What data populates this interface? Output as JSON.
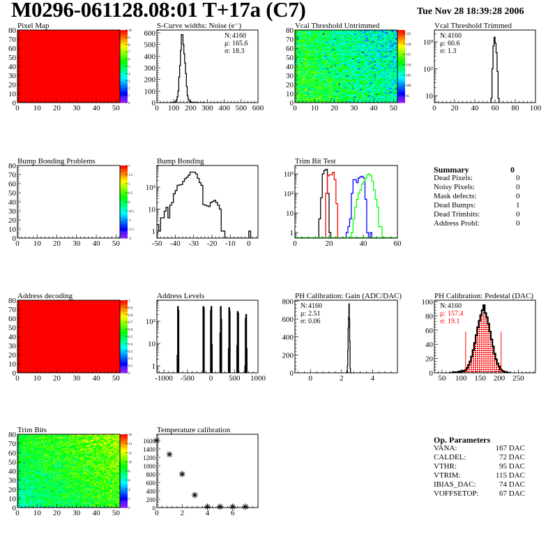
{
  "header": {
    "title": "M0296-061128.08:01 T+17a (C7)",
    "date": "Tue Nov 28 18:39:28 2006"
  },
  "summary": {
    "title": "Summary",
    "total": "0",
    "rows": [
      {
        "label": "Dead Pixels:",
        "value": "0"
      },
      {
        "label": "Noisy Pixels:",
        "value": "0"
      },
      {
        "label": "Mask defects:",
        "value": "0"
      },
      {
        "label": "Dead Bumps:",
        "value": "1"
      },
      {
        "label": "Dead Trimbits:",
        "value": "0"
      },
      {
        "label": "Address Probl:",
        "value": "0"
      }
    ]
  },
  "op_parameters": {
    "title": "Op. Parameters",
    "rows": [
      {
        "label": "VANA:",
        "value": "167 DAC"
      },
      {
        "label": "CALDEL:",
        "value": "72 DAC"
      },
      {
        "label": "VTHR:",
        "value": "95 DAC"
      },
      {
        "label": "VTRIM:",
        "value": "115 DAC"
      },
      {
        "label": "IBIAS_DAC:",
        "value": "74 DAC"
      },
      {
        "label": "VOFFSETOP:",
        "value": "67 DAC"
      }
    ]
  },
  "chart_data": [
    {
      "type": "heatmap",
      "title": "Pixel Map",
      "xlim": [
        0,
        52
      ],
      "ylim": [
        0,
        80
      ],
      "xticks": [
        0,
        10,
        20,
        30,
        40,
        50
      ],
      "yticks": [
        0,
        10,
        20,
        30,
        40,
        50,
        60,
        70,
        80
      ],
      "z_range": [
        0,
        10
      ],
      "z_ticks": [
        0,
        1,
        2,
        3,
        4,
        5,
        6,
        7,
        8,
        9,
        10
      ],
      "fill_value": 10
    },
    {
      "type": "histogram",
      "title": "S-Curve widths: Noise (e⁻)",
      "xlim": [
        0,
        600
      ],
      "ylim": [
        0,
        624
      ],
      "log_y": false,
      "xticks": [
        0,
        100,
        200,
        300,
        400,
        500,
        600
      ],
      "yticks": [
        0,
        100,
        200,
        300,
        400,
        500,
        600
      ],
      "series": [
        {
          "color": "#000000",
          "x0": 85,
          "bin_width": 5,
          "values": [
            1,
            2,
            2,
            3,
            5,
            10,
            25,
            50,
            100,
            220,
            320,
            450,
            585,
            585,
            500,
            420,
            340,
            250,
            140,
            60,
            30,
            15,
            10,
            5,
            3,
            2,
            1,
            0,
            0,
            2,
            1,
            0,
            0,
            0,
            0,
            0,
            0,
            0,
            1,
            0
          ]
        }
      ],
      "stats": [
        {
          "label": "N:",
          "value": "4160"
        },
        {
          "label": "μ:",
          "value": "165.6"
        },
        {
          "label": "σ:",
          "value": "18.3"
        }
      ]
    },
    {
      "type": "heatmap",
      "title": "Vcal Threshold Untrimmed",
      "xlim": [
        0,
        52
      ],
      "ylim": [
        0,
        80
      ],
      "xticks": [
        0,
        10,
        20,
        30,
        40,
        50
      ],
      "yticks": [
        0,
        10,
        20,
        30,
        40,
        50,
        60,
        70,
        80
      ],
      "z_range": [
        91.6,
        126.7
      ],
      "z_ticks": [
        95,
        100,
        105,
        110,
        115,
        120,
        125
      ],
      "pattern": "noisy",
      "z_typical": [
        100,
        120
      ]
    },
    {
      "type": "histogram",
      "title": "Vcal Threshold Trimmed",
      "xlim": [
        0,
        100
      ],
      "ylim": [
        5.5,
        2770
      ],
      "log_y": true,
      "xticks": [
        0,
        20,
        40,
        60,
        80,
        100
      ],
      "yticks": [
        10,
        100,
        1000
      ],
      "ytick_labels": [
        "10",
        "10²",
        "10³"
      ],
      "series": [
        {
          "color": "#000000",
          "x0": 56,
          "bin_width": 1,
          "values": [
            8,
            100,
            700,
            1500,
            900,
            400,
            80,
            8
          ]
        }
      ],
      "stats": [
        {
          "label": "N:",
          "value": "4160"
        },
        {
          "label": "μ:",
          "value": "60.6"
        },
        {
          "label": "σ:",
          "value": " 1.3"
        }
      ]
    },
    {
      "type": "heatmap",
      "title": "Bump Bonding Problems",
      "xlim": [
        0,
        52
      ],
      "ylim": [
        0,
        80
      ],
      "xticks": [
        0,
        10,
        20,
        30,
        40,
        50
      ],
      "yticks": [
        0,
        10,
        20,
        30,
        40,
        50,
        60,
        70,
        80
      ],
      "z_range": [
        -2,
        2
      ],
      "z_ticks": [
        -2,
        -1.5,
        -1,
        -0.5,
        0,
        0.5,
        1,
        1.5,
        2
      ],
      "cells": [
        {
          "x": 51,
          "y": 0,
          "z": 0
        }
      ]
    },
    {
      "type": "histogram",
      "title": "Bump Bonding",
      "xlim": [
        -50,
        5
      ],
      "ylim": [
        0.48,
        960
      ],
      "log_y": true,
      "xticks": [
        -50,
        -40,
        -30,
        -20,
        -10,
        0
      ],
      "yticks": [
        1,
        10,
        100
      ],
      "ytick_labels": [
        "1",
        "10",
        "10²"
      ],
      "series": [
        {
          "color": "#000000",
          "x0": -50,
          "bin_width": 1,
          "values": [
            2,
            1,
            4,
            4,
            8,
            12,
            4,
            15,
            20,
            50,
            70,
            120,
            125,
            130,
            180,
            240,
            280,
            350,
            480,
            480,
            480,
            400,
            250,
            160,
            120,
            16,
            15,
            14,
            13,
            20,
            22,
            25,
            20,
            15,
            10,
            1,
            1,
            0,
            0,
            0,
            0,
            0,
            0,
            0,
            0,
            0,
            0,
            0,
            0,
            0,
            1,
            0
          ]
        }
      ]
    },
    {
      "type": "histogram",
      "title": "Trim Bit Test",
      "xlim": [
        0,
        60
      ],
      "ylim": [
        0.52,
        2680
      ],
      "log_y": true,
      "xticks": [
        0,
        20,
        40,
        60
      ],
      "yticks": [
        1,
        10,
        100,
        1000
      ],
      "ytick_labels": [
        "1",
        "10",
        "10²",
        "10³"
      ],
      "series": [
        {
          "color": "#000000",
          "x0": 14,
          "bin_width": 1,
          "values": [
            5,
            60,
            1000,
            1500,
            1700,
            100,
            1
          ]
        },
        {
          "color": "#ff0000",
          "x0": 17,
          "bin_width": 1,
          "values": [
            0,
            100,
            800,
            900,
            900,
            1200,
            500,
            30
          ]
        },
        {
          "color": "#0000ff",
          "x0": 30,
          "bin_width": 1,
          "values": [
            1,
            2,
            5,
            100,
            500,
            500,
            350,
            600,
            700,
            750,
            600,
            50,
            1,
            0,
            1
          ]
        },
        {
          "color": "#00ff00",
          "x0": 33,
          "bin_width": 1,
          "values": [
            1,
            5,
            20,
            50,
            100,
            150,
            300,
            400,
            600,
            900,
            1000,
            800,
            400,
            150,
            50,
            20,
            2,
            2
          ]
        }
      ]
    },
    {
      "type": "heatmap",
      "title": "Address decoding",
      "xlim": [
        0,
        52
      ],
      "ylim": [
        0,
        80
      ],
      "xticks": [
        0,
        10,
        20,
        30,
        40,
        50
      ],
      "yticks": [
        0,
        10,
        20,
        30,
        40,
        50,
        60,
        70,
        80
      ],
      "z_range": [
        0,
        1
      ],
      "z_ticks": [
        0,
        0.1,
        0.2,
        0.3,
        0.4,
        0.5,
        0.6,
        0.7,
        0.8,
        0.9,
        1
      ],
      "fill_value": 1
    },
    {
      "type": "histogram",
      "title": "Address Levels",
      "xlim": [
        -1150,
        1000
      ],
      "ylim": [
        0.49,
        866
      ],
      "log_y": true,
      "xticks": [
        -1000,
        -500,
        0,
        500,
        1000
      ],
      "yticks": [
        1,
        10,
        100
      ],
      "ytick_labels": [
        "1",
        "10",
        "10²"
      ],
      "bin_width": 10,
      "bins": [
        [
          -720,
          3
        ],
        [
          -710,
          450
        ],
        [
          -700,
          300
        ],
        [
          -170,
          450
        ],
        [
          -160,
          400
        ],
        [
          -10,
          300
        ],
        [
          0,
          450
        ],
        [
          10,
          9
        ],
        [
          190,
          30
        ],
        [
          200,
          450
        ],
        [
          210,
          120
        ],
        [
          370,
          6
        ],
        [
          380,
          400
        ],
        [
          390,
          280
        ],
        [
          550,
          8
        ],
        [
          560,
          270
        ],
        [
          570,
          230
        ],
        [
          720,
          1
        ],
        [
          730,
          130
        ],
        [
          740,
          200
        ],
        [
          750,
          6
        ]
      ]
    },
    {
      "type": "histogram",
      "title": "PH Calibration: Gain (ADC/DAC)",
      "xlim": [
        -1,
        5.6
      ],
      "ylim": [
        0,
        810
      ],
      "log_y": false,
      "xticks": [
        0,
        2,
        4
      ],
      "yticks": [
        0,
        200,
        400,
        600,
        800
      ],
      "series": [
        {
          "color": "#000000",
          "x0": 2.3,
          "bin_width": 0.025,
          "values": [
            2,
            5,
            20,
            80,
            250,
            500,
            620,
            770,
            600,
            350,
            50,
            5
          ]
        }
      ],
      "stats": [
        {
          "label": "N:",
          "value": "4160"
        },
        {
          "label": "μ:",
          "value": "2.51"
        },
        {
          "label": "σ:",
          "value": "0.06"
        }
      ]
    },
    {
      "type": "histogram",
      "title": "PH Calibration: Pedestal (DAC)",
      "xlim": [
        30,
        295
      ],
      "ylim": [
        0,
        102
      ],
      "log_y": false,
      "xticks": [
        50,
        100,
        150,
        200,
        250
      ],
      "yticks": [
        0,
        20,
        40,
        60,
        80,
        100
      ],
      "series": [
        {
          "color": "#000000",
          "x0": 70,
          "bin_width": 4,
          "values": [
            0,
            0,
            1,
            0,
            1,
            1,
            2,
            1,
            3,
            2,
            4,
            7,
            11,
            16,
            23,
            32,
            42,
            53,
            64,
            73,
            81,
            88,
            95,
            84,
            78,
            69,
            58,
            47,
            37,
            27,
            19,
            13,
            9,
            5,
            3,
            2,
            1,
            1,
            0,
            0
          ]
        }
      ],
      "fill_range": [
        112,
        205
      ],
      "fill_color": "#ff0000",
      "cut_lines": [
        112,
        205
      ],
      "cut_height": 58,
      "stats": [
        {
          "label": "N:",
          "value": "4160"
        },
        {
          "label": "μ:",
          "value": "157.4",
          "color": "#ff0000"
        },
        {
          "label": "σ:",
          "value": "19.1",
          "color": "#ff0000"
        }
      ]
    },
    {
      "type": "heatmap",
      "title": "Trim Bits",
      "xlim": [
        0,
        52
      ],
      "ylim": [
        0,
        80
      ],
      "xticks": [
        0,
        10,
        20,
        30,
        40,
        50
      ],
      "yticks": [
        0,
        10,
        20,
        30,
        40,
        50,
        60,
        70,
        80
      ],
      "z_range": [
        0,
        16
      ],
      "z_ticks": [
        0,
        2,
        4,
        6,
        8,
        10,
        12,
        14,
        16
      ],
      "pattern": "noisy",
      "z_typical": [
        5,
        12
      ]
    },
    {
      "type": "scatter",
      "title": "Temperature calibration",
      "xlim": [
        0,
        8
      ],
      "ylim": [
        0,
        1750
      ],
      "xticks": [
        0,
        2,
        4,
        6
      ],
      "yticks": [
        0,
        200,
        400,
        600,
        800,
        1000,
        1200,
        1400,
        1600
      ],
      "x": [
        0,
        1,
        2,
        3,
        4,
        5,
        6,
        7
      ],
      "y": [
        1600,
        1270,
        800,
        300,
        20,
        20,
        20,
        20
      ],
      "marker": "asterisk"
    }
  ]
}
